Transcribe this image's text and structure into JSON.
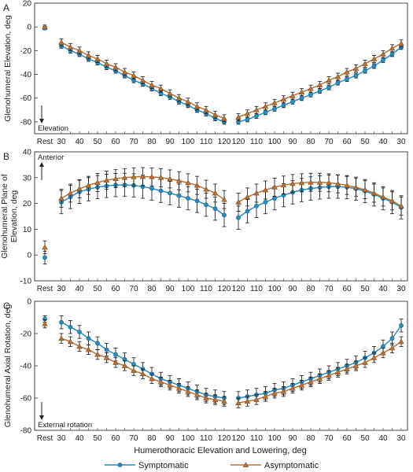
{
  "chart_data": {
    "type": "line",
    "xlabel": "Humerothoracic Elevation and Lowering, deg",
    "x_categories_raise": [
      "30",
      "35",
      "40",
      "45",
      "50",
      "55",
      "60",
      "65",
      "70",
      "75",
      "80",
      "85",
      "90",
      "95",
      "100",
      "105",
      "110",
      "115",
      "120"
    ],
    "x_categories_lower": [
      "120",
      "115",
      "110",
      "105",
      "100",
      "95",
      "90",
      "85",
      "80",
      "75",
      "70",
      "65",
      "60",
      "55",
      "50",
      "45",
      "40",
      "35",
      "30"
    ],
    "x_tick_labels_raise": [
      "30",
      "40",
      "50",
      "60",
      "70",
      "80",
      "90",
      "100",
      "110",
      "120"
    ],
    "x_tick_labels_lower": [
      "120",
      "110",
      "100",
      "90",
      "80",
      "70",
      "60",
      "50",
      "40",
      "30"
    ],
    "rest_label": "Rest",
    "legend": [
      {
        "name": "Symptomatic",
        "color": "#2b8cbe",
        "marker": "circle"
      },
      {
        "name": "Asymptomatic",
        "color": "#b8733a",
        "marker": "triangle"
      }
    ],
    "panels": [
      {
        "letter": "A",
        "ylabel": [
          "Glenohumeral Elevation, deg"
        ],
        "ylim": [
          -90,
          20
        ],
        "yticks": [
          20,
          0,
          -20,
          -40,
          -60,
          -80
        ],
        "annotation": {
          "text": "Elevation",
          "direction": "down",
          "corner": "bottom-left"
        },
        "series": [
          {
            "name": "Symptomatic",
            "rest": -1,
            "rest_err": 1.5,
            "raise": [
              -16,
              -20,
              -23,
              -27,
              -30,
              -34,
              -37,
              -41,
              -45,
              -48,
              -52,
              -56,
              -59,
              -63,
              -66,
              -70,
              -73,
              -77,
              -80
            ],
            "lower": [
              -80,
              -78,
              -75,
              -72,
              -69,
              -66,
              -63,
              -60,
              -57,
              -54,
              -51,
              -47,
              -44,
              -41,
              -37,
              -33,
              -28,
              -23,
              -17
            ],
            "err": 2
          },
          {
            "name": "Asymptomatic",
            "rest": 0,
            "rest_err": 1.5,
            "raise": [
              -13,
              -17,
              -20,
              -24,
              -27,
              -31,
              -34,
              -38,
              -41,
              -45,
              -49,
              -52,
              -56,
              -60,
              -63,
              -67,
              -70,
              -74,
              -77
            ],
            "lower": [
              -76,
              -73,
              -70,
              -67,
              -64,
              -61,
              -58,
              -55,
              -52,
              -49,
              -45,
              -42,
              -38,
              -35,
              -31,
              -27,
              -23,
              -18,
              -14
            ],
            "err": 3
          }
        ]
      },
      {
        "letter": "B",
        "ylabel": [
          "Glenohumeral Plane of",
          "Elevation, deg"
        ],
        "ylim": [
          -10,
          40
        ],
        "yticks": [
          40,
          30,
          20,
          10,
          0,
          -10
        ],
        "annotation": {
          "text": "Anterior",
          "direction": "up",
          "corner": "top-left"
        },
        "series": [
          {
            "name": "Symptomatic",
            "rest": -1,
            "rest_err": 2.5,
            "raise": [
              20.5,
              22.5,
              24.5,
              25.5,
              26.3,
              26.8,
              27.1,
              27.2,
              27,
              26.5,
              25.8,
              24.9,
              24,
              23,
              22,
              21,
              19.5,
              18,
              15.5
            ],
            "lower": [
              14.5,
              17,
              19,
              20.5,
              22,
              23.2,
              24.3,
              25.2,
              25.8,
              26.2,
              26.5,
              26.5,
              26.3,
              25.7,
              24.8,
              23.5,
              22,
              20.5,
              18.5
            ],
            "err": 4.5
          },
          {
            "name": "Asymptomatic",
            "rest": 3,
            "rest_err": 2.5,
            "raise": [
              22,
              24,
              25.7,
              27,
              28.1,
              29,
              29.6,
              30,
              30.3,
              30.4,
              30.3,
              30,
              29.5,
              28.8,
              28,
              27,
              25.5,
              24,
              21.5
            ],
            "lower": [
              20.5,
              22.5,
              24,
              25.2,
              26.3,
              27.1,
              27.7,
              28,
              28.2,
              28.2,
              28,
              27.6,
              27,
              26.2,
              25.3,
              24,
              22.5,
              21,
              19
            ],
            "err": 3.5
          }
        ]
      },
      {
        "letter": "C",
        "ylabel": [
          "Glenohumeral Axial Rotation, deg"
        ],
        "ylim": [
          -80,
          0
        ],
        "yticks": [
          0,
          -20,
          -40,
          -60,
          -80
        ],
        "annotation": {
          "text": "External rotation",
          "direction": "down",
          "corner": "bottom-left"
        },
        "series": [
          {
            "name": "Symptomatic",
            "rest": -11,
            "rest_err": 2,
            "raise": [
              -13,
              -16,
              -19,
              -23,
              -26,
              -30,
              -33,
              -36,
              -39,
              -42,
              -45,
              -48,
              -50,
              -52,
              -54,
              -56,
              -58,
              -59,
              -60
            ],
            "lower": [
              -60,
              -59,
              -58,
              -57,
              -55,
              -54,
              -52,
              -50,
              -48,
              -46,
              -44,
              -42,
              -40,
              -38,
              -35,
              -32,
              -28,
              -23,
              -15
            ],
            "err": 4
          },
          {
            "name": "Asymptomatic",
            "rest": -14,
            "rest_err": 2.5,
            "raise": [
              -23,
              -25,
              -28,
              -30,
              -33,
              -35,
              -38,
              -40,
              -43,
              -45,
              -48,
              -50,
              -52,
              -54,
              -56,
              -58,
              -60,
              -61,
              -62
            ],
            "lower": [
              -63,
              -62,
              -61,
              -59,
              -57,
              -56,
              -54,
              -52,
              -50,
              -48,
              -46,
              -44,
              -42,
              -40,
              -38,
              -35,
              -32,
              -29,
              -25
            ],
            "err": 3
          }
        ]
      }
    ]
  }
}
